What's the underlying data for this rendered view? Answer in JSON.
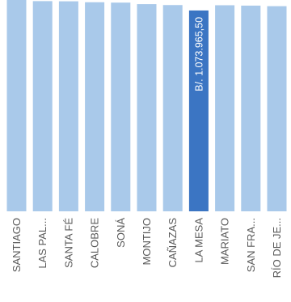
{
  "chart_data": {
    "type": "bar",
    "orientation": "vertical",
    "categories": [
      "SANTIAGO",
      "LAS PAL...",
      "SANTA FÉ",
      "CALOBRE",
      "SONÁ",
      "MONTIJO",
      "CAÑAZAS",
      "LA MESA",
      "MARIATO",
      "SAN FRA...",
      "RÍO DE JE..."
    ],
    "values": [
      1130000,
      1124000,
      1123000,
      1118000,
      1116000,
      1108000,
      1103000,
      1073965.5,
      1102000,
      1100000,
      1097000
    ],
    "highlighted_index": 7,
    "highlighted_value_label": "B/. 1.073.965,50",
    "ylim": [
      0,
      1130000
    ],
    "colors": {
      "bar": "#a9c9ea",
      "highlight": "#3b75c3",
      "text": "#595959"
    }
  }
}
